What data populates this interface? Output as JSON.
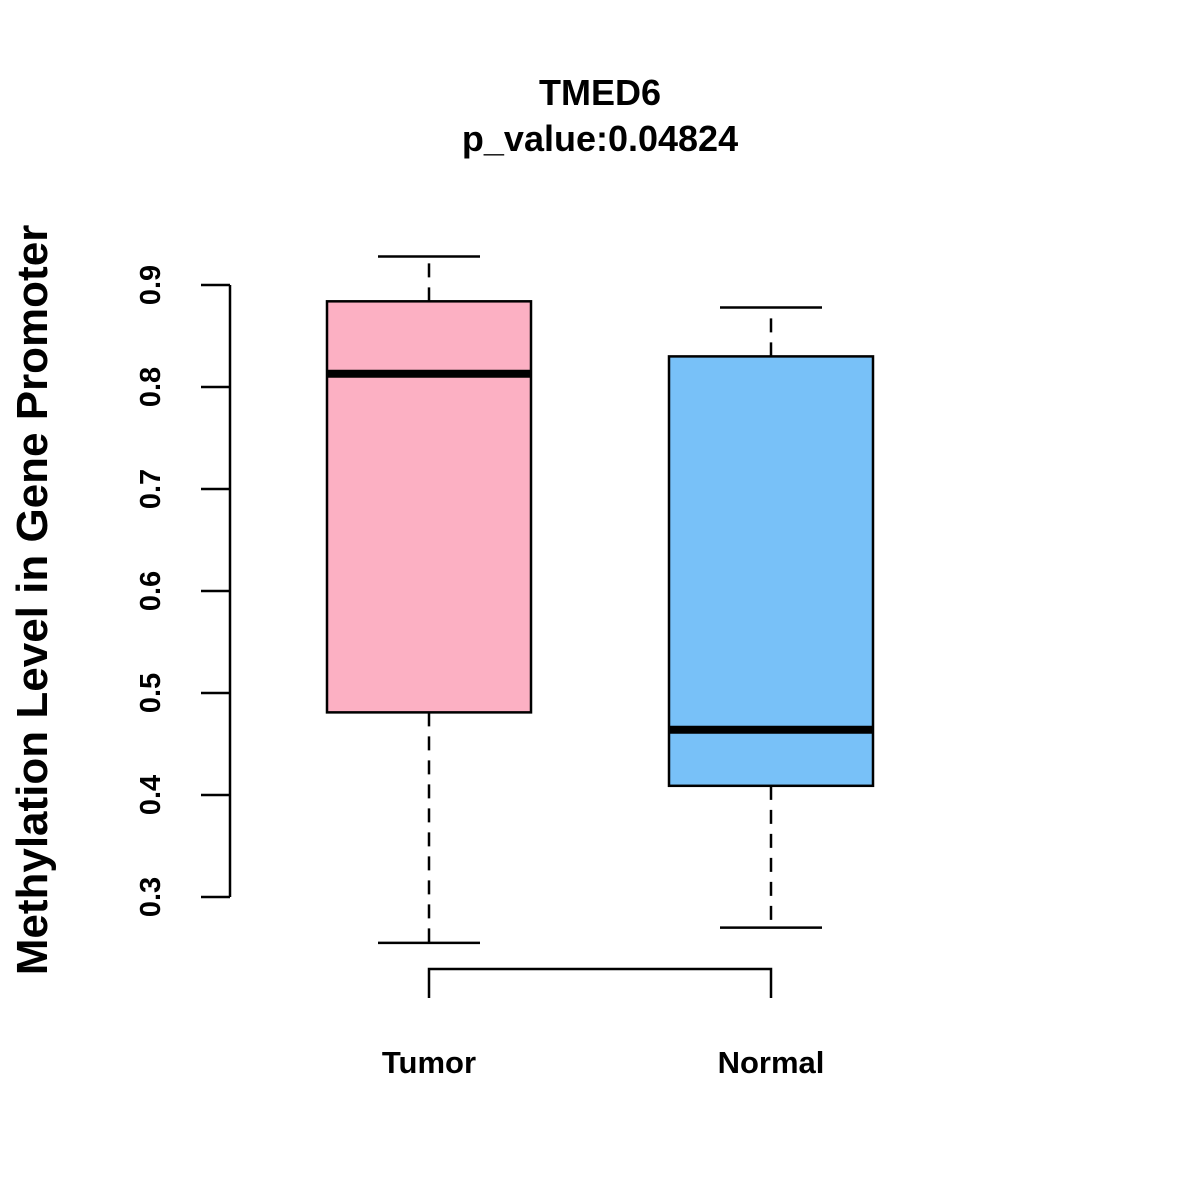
{
  "chart_data": {
    "type": "boxplot",
    "title": "TMED6",
    "subtitle": "p_value:0.04824",
    "xlabel": "",
    "ylabel": "Methylation Level in Gene Promoter",
    "y_ticks": [
      0.3,
      0.4,
      0.5,
      0.6,
      0.7,
      0.8,
      0.9
    ],
    "y_tick_labels": [
      "0.3",
      "0.4",
      "0.5",
      "0.6",
      "0.7",
      "0.8",
      "0.9"
    ],
    "categories": [
      "Tumor",
      "Normal"
    ],
    "series": [
      {
        "name": "Tumor",
        "color": "#FCB0C3",
        "whisker_low": 0.255,
        "q1": 0.481,
        "median": 0.813,
        "q3": 0.884,
        "whisker_high": 0.928
      },
      {
        "name": "Normal",
        "color": "#78C1F8",
        "whisker_low": 0.27,
        "q1": 0.409,
        "median": 0.464,
        "q3": 0.83,
        "whisker_high": 0.878
      }
    ],
    "comparison_bracket": [
      "Tumor",
      "Normal"
    ]
  }
}
